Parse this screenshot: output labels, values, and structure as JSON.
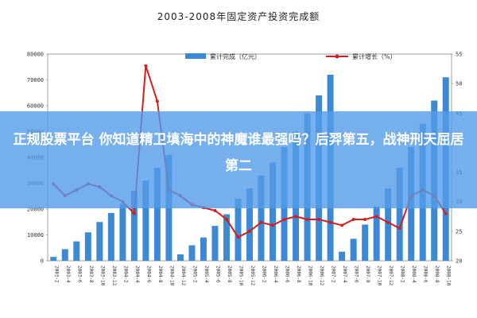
{
  "banner": {
    "text": "正规股票平台 你知道精卫填海中的神魔谁最强吗？后羿第五，战神刑天屈居第二"
  },
  "chart_data": {
    "type": "bar",
    "title": "2003-2008年固定资产投资完成额",
    "legend": [
      "累计完成（亿元）",
      "累计增长（%）"
    ],
    "legend_position": "top",
    "y_left": {
      "min": 0,
      "max": 80000,
      "ticks": [
        0,
        10000,
        20000,
        30000,
        40000,
        50000,
        60000,
        70000,
        80000
      ]
    },
    "y_right": {
      "min": 20,
      "max": 55,
      "ticks": [
        20,
        25,
        30,
        35,
        40,
        45,
        50,
        55
      ]
    },
    "x_labels": [
      "2003-2",
      "2003-4",
      "2003-6",
      "2003-8",
      "2003-10",
      "2003-12",
      "2004-2",
      "2004-4",
      "2004-6",
      "2004-8",
      "2004-10",
      "2004-12",
      "2005-2",
      "2005-4",
      "2005-6",
      "2005-8",
      "2005-10",
      "2005-12",
      "2006-2",
      "2006-4",
      "2006-6",
      "2006-8",
      "2006-10",
      "2006-12",
      "2007-2",
      "2007-4",
      "2007-6",
      "2007-8",
      "2007-10",
      "2007-12",
      "2008-2",
      "2008-4",
      "2008-6",
      "2008-8",
      "2008-10"
    ],
    "series": [
      {
        "name": "累计完成（亿元）",
        "type": "bar",
        "axis": "left",
        "values": [
          1500,
          4500,
          7500,
          11000,
          15000,
          18500,
          22000,
          27000,
          31000,
          36000,
          41000,
          2500,
          6000,
          9000,
          13500,
          18000,
          24000,
          28000,
          33000,
          38000,
          44000,
          50000,
          57000,
          64000,
          72000,
          3500,
          8500,
          14000,
          21000,
          28000,
          36000,
          44000,
          53000,
          62000,
          71000
        ]
      },
      {
        "name": "累计增长（%）",
        "type": "line",
        "axis": "right",
        "values": [
          33,
          31,
          32,
          33,
          32.5,
          31,
          30,
          28,
          53,
          47,
          32,
          31,
          29.5,
          29,
          28.5,
          27,
          24,
          25,
          26.5,
          26,
          27,
          27.5,
          27,
          27,
          26.5,
          26,
          27,
          27,
          27.5,
          26.5,
          25.5,
          31,
          32,
          31,
          28
        ]
      }
    ]
  }
}
